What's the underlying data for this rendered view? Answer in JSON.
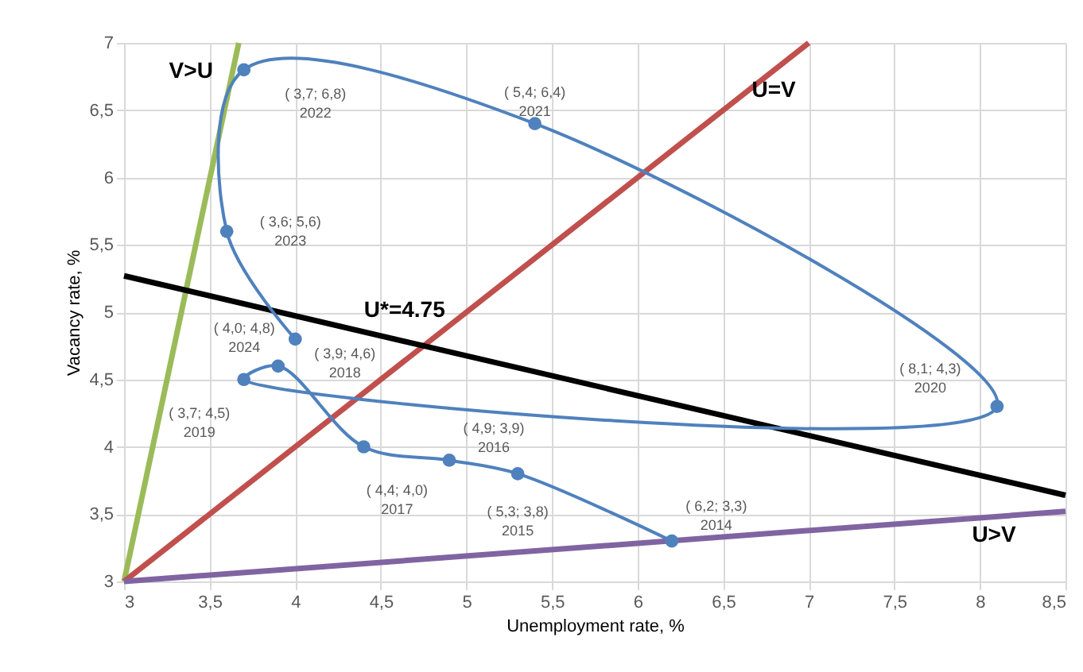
{
  "chart_data": {
    "type": "line",
    "xlabel": "Unemployment rate, %",
    "ylabel": "Vacancy rate, %",
    "xlim": [
      3,
      8.5
    ],
    "ylim": [
      3,
      7
    ],
    "xticks": [
      3,
      {
        "value": 3.5,
        "label": "3,5"
      },
      4,
      {
        "value": 4.5,
        "label": "4,5"
      },
      5,
      {
        "value": 5.5,
        "label": "5,5"
      },
      6,
      {
        "value": 6.5,
        "label": "6,5"
      },
      7,
      {
        "value": 7.5,
        "label": "7,5"
      },
      8,
      {
        "value": 8.5,
        "label": "8,5"
      }
    ],
    "yticks": [
      3,
      {
        "value": 3.5,
        "label": "3,5"
      },
      4,
      {
        "value": 4.5,
        "label": "4,5"
      },
      5,
      {
        "value": 5.5,
        "label": "5,5"
      },
      6,
      {
        "value": 6.5,
        "label": "6,5"
      },
      7
    ],
    "grid": true,
    "line_style": "solid",
    "series": [
      {
        "color": "#4f81bd",
        "marker": "circle",
        "x": [
          6.2,
          5.3,
          4.9,
          4.4,
          3.9,
          3.7,
          8.1,
          5.4,
          3.7,
          3.6,
          4.0
        ],
        "values": [
          3.3,
          3.8,
          3.9,
          4.0,
          4.6,
          4.5,
          4.3,
          6.4,
          6.8,
          5.6,
          4.8
        ]
      },
      {
        "name": "V>U",
        "color": "#9bbb59",
        "marker": "none",
        "x": [
          3,
          3.67
        ],
        "values": [
          3,
          7
        ]
      },
      {
        "name": "U=V",
        "color": "#c0504d",
        "marker": "none",
        "x": [
          3,
          7
        ],
        "values": [
          3,
          7
        ]
      },
      {
        "name": "U*=4.75",
        "color": "#000000",
        "marker": "none",
        "x": [
          3,
          4.75,
          8.5
        ],
        "values": [
          5.27,
          4.75,
          3.64
        ]
      },
      {
        "name": "U>V",
        "color": "#8064a2",
        "marker": "none",
        "x": [
          3,
          8.5
        ],
        "values": [
          3,
          3.52
        ]
      }
    ],
    "annotations": [
      {
        "text": "( 6,2; 3,3)\n2014",
        "x": 6.2,
        "y": 3.3
      },
      {
        "text": "( 5,3; 3,8)\n2015",
        "x": 5.3,
        "y": 3.8
      },
      {
        "text": "( 4,9; 3,9)\n2016",
        "x": 4.9,
        "y": 3.9
      },
      {
        "text": "( 4,4; 4,0)\n2017",
        "x": 4.4,
        "y": 4.0
      },
      {
        "text": "( 3,9; 4,6)\n2018",
        "x": 3.9,
        "y": 4.6
      },
      {
        "text": "( 3,7; 4,5)\n2019",
        "x": 3.7,
        "y": 4.5
      },
      {
        "text": "( 8,1; 4,3)\n2020",
        "x": 8.1,
        "y": 4.3
      },
      {
        "text": "( 5,4; 6,4)\n2021",
        "x": 5.4,
        "y": 6.4
      },
      {
        "text": "( 3,7; 6,8)\n2022",
        "x": 3.7,
        "y": 6.8
      },
      {
        "text": "( 3,6; 5,6)\n2023",
        "x": 3.6,
        "y": 5.6
      },
      {
        "text": "( 4,0; 4,8)\n2024",
        "x": 4.0,
        "y": 4.8
      }
    ]
  }
}
